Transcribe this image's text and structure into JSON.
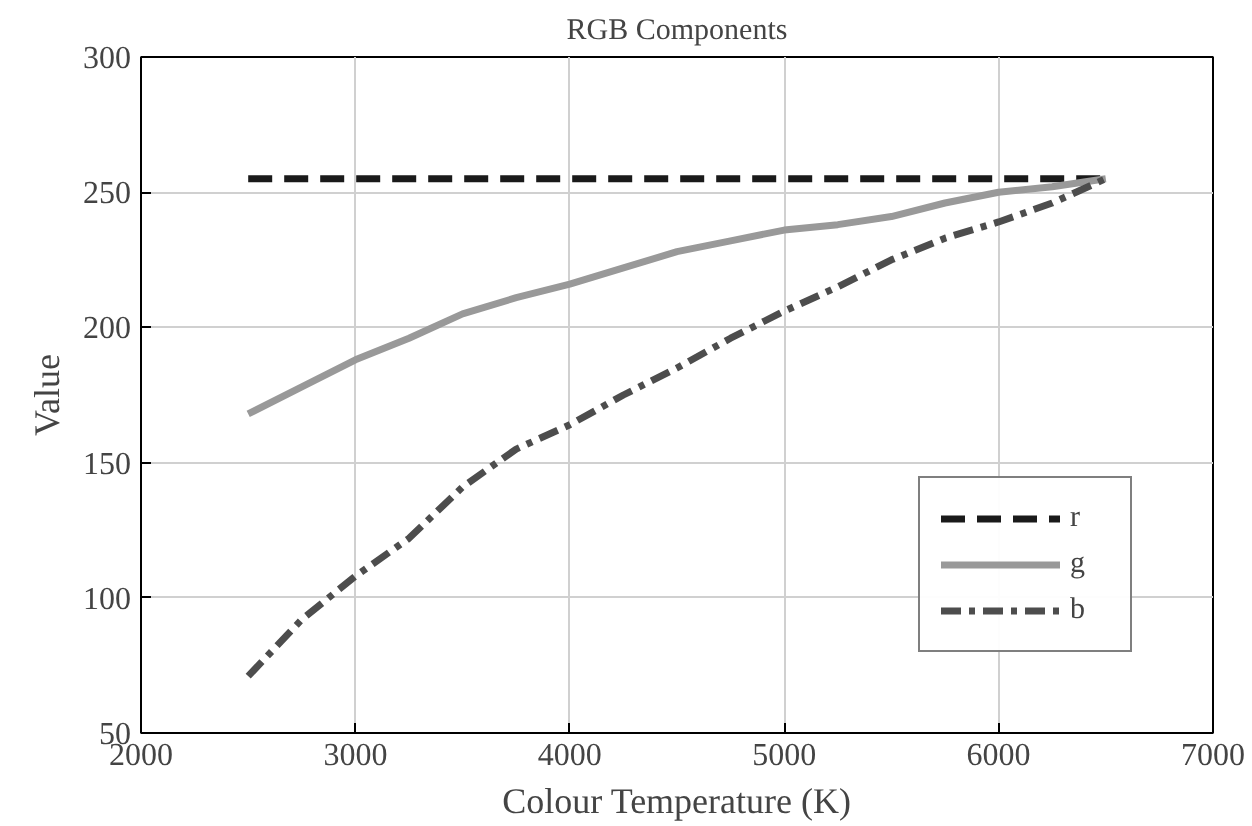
{
  "chart_data": {
    "type": "line",
    "title": "RGB Components",
    "xlabel": "Colour Temperature (K)",
    "ylabel": "Value",
    "x": [
      2500,
      2750,
      3000,
      3250,
      3500,
      3750,
      4000,
      4250,
      4500,
      4750,
      5000,
      5250,
      5500,
      5750,
      6000,
      6250,
      6500
    ],
    "series": [
      {
        "name": "r",
        "color": "#1a1a1a",
        "line_style": "dashed",
        "values": [
          255,
          255,
          255,
          255,
          255,
          255,
          255,
          255,
          255,
          255,
          255,
          255,
          255,
          255,
          255,
          255,
          255
        ]
      },
      {
        "name": "g",
        "color": "#999999",
        "line_style": "solid",
        "values": [
          168,
          178,
          188,
          196,
          205,
          211,
          216,
          222,
          228,
          232,
          236,
          238,
          241,
          246,
          250,
          252,
          255
        ]
      },
      {
        "name": "b",
        "color": "#4d4d4d",
        "line_style": "dashdot",
        "values": [
          71,
          92,
          108,
          122,
          141,
          155,
          164,
          175,
          185,
          196,
          206,
          215,
          225,
          233,
          239,
          246,
          255
        ]
      }
    ],
    "xlim": [
      2000,
      7000
    ],
    "ylim": [
      50,
      300
    ],
    "xticks": [
      2000,
      3000,
      4000,
      5000,
      6000,
      7000
    ],
    "yticks": [
      50,
      100,
      150,
      200,
      250,
      300
    ],
    "grid": true,
    "legend": "bottom right"
  }
}
